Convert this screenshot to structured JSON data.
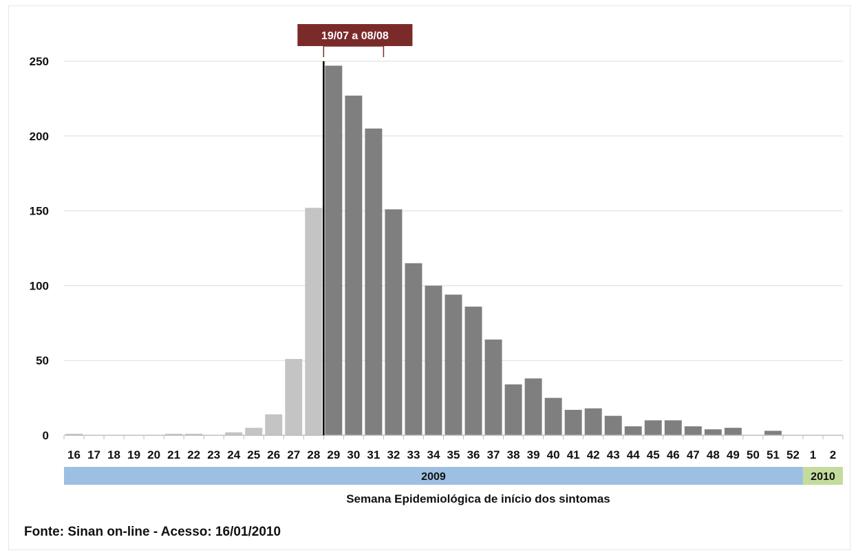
{
  "chart_data": {
    "type": "bar",
    "title": "",
    "xlabel": "Semana Epidemiológica de início dos sintomas",
    "ylabel": "",
    "ylim": [
      0,
      250
    ],
    "yticks": [
      0,
      50,
      100,
      150,
      200,
      250
    ],
    "grid": true,
    "categories": [
      "16",
      "17",
      "18",
      "19",
      "20",
      "21",
      "22",
      "23",
      "24",
      "25",
      "26",
      "27",
      "28",
      "29",
      "30",
      "31",
      "32",
      "33",
      "34",
      "35",
      "36",
      "37",
      "38",
      "39",
      "40",
      "41",
      "42",
      "43",
      "44",
      "45",
      "46",
      "47",
      "48",
      "49",
      "50",
      "51",
      "52",
      "1",
      "2"
    ],
    "values": [
      1,
      0,
      0,
      0,
      0,
      1,
      1,
      0,
      2,
      5,
      14,
      51,
      152,
      247,
      227,
      205,
      151,
      115,
      100,
      94,
      86,
      64,
      34,
      38,
      25,
      17,
      18,
      13,
      6,
      10,
      10,
      6,
      4,
      5,
      0,
      3,
      0,
      0,
      0
    ],
    "bar_colors": {
      "before": "#c4c4c4",
      "after": "#7f7f7f"
    },
    "split_after_category": "28",
    "year_bands": [
      {
        "label": "2009",
        "from": "16",
        "to": "52",
        "color": "#9dbfe4"
      },
      {
        "label": "2010",
        "from": "1",
        "to": "2",
        "color": "#c3dc9e"
      }
    ],
    "annotation": {
      "label": "19/07 a 08/08",
      "from": "29",
      "to": "31",
      "color": "#7b2a2a"
    },
    "source": "Fonte: Sinan on-line - Acesso: 16/01/2010"
  }
}
